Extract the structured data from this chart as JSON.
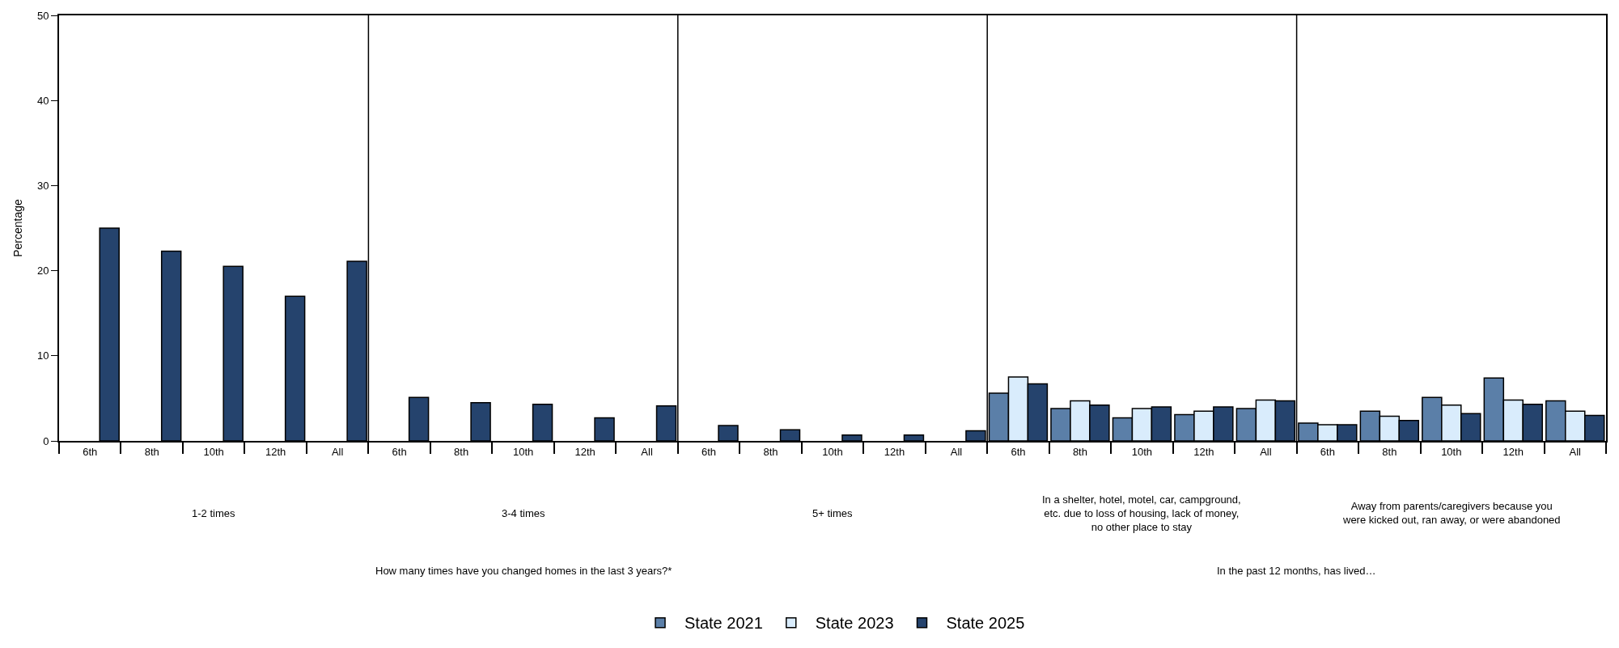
{
  "chart_data": {
    "type": "bar",
    "ylabel": "Percentage",
    "categories": [
      "6th",
      "8th",
      "10th",
      "12th",
      "All",
      "6th",
      "8th",
      "10th",
      "12th",
      "All",
      "6th",
      "8th",
      "10th",
      "12th",
      "All",
      "6th",
      "8th",
      "10th",
      "12th",
      "All",
      "6th",
      "8th",
      "10th",
      "12th",
      "All"
    ],
    "series": [
      {
        "name": "State 2021",
        "color": "#5b7fa8",
        "values": [
          null,
          null,
          null,
          null,
          null,
          null,
          null,
          null,
          null,
          null,
          null,
          null,
          null,
          null,
          null,
          5.6,
          3.8,
          2.7,
          3.1,
          3.8,
          2.1,
          3.5,
          5.1,
          7.4,
          4.7
        ]
      },
      {
        "name": "State 2023",
        "color": "#d9ecfc",
        "values": [
          null,
          null,
          null,
          null,
          null,
          null,
          null,
          null,
          null,
          null,
          null,
          null,
          null,
          null,
          null,
          7.5,
          4.7,
          3.8,
          3.5,
          4.8,
          1.9,
          2.9,
          4.2,
          4.8,
          3.5
        ]
      },
      {
        "name": "State 2025",
        "color": "#25436d",
        "values": [
          25.0,
          22.3,
          20.5,
          17.0,
          21.1,
          5.1,
          4.5,
          4.3,
          2.7,
          4.1,
          1.8,
          1.3,
          0.7,
          0.7,
          1.2,
          6.7,
          4.2,
          4.0,
          4.0,
          4.7,
          1.9,
          2.4,
          3.2,
          4.3,
          3.0
        ]
      }
    ],
    "annotations": [
      "1-2 times",
      "3-4 times",
      "5+ times",
      "In a shelter, hotel, motel, car, campground, etc. due to loss of housing, lack of money, no other place to stay",
      "Away from parents/caregivers because you were kicked out, ran away, or were abandoned",
      "How many times have you changed homes in the last 3 years?*",
      "In the past 12 months, has lived…"
    ],
    "ylim": [
      0,
      50
    ],
    "yticks": [
      0,
      10,
      20,
      30,
      40,
      50
    ],
    "legend": "bottom"
  }
}
